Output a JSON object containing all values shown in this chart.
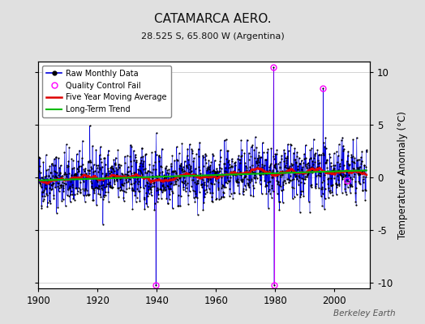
{
  "title": "CATAMARCA AERO.",
  "subtitle": "28.525 S, 65.800 W (Argentina)",
  "ylabel": "Temperature Anomaly (°C)",
  "watermark": "Berkeley Earth",
  "start_year": 1900,
  "end_year": 2011,
  "ylim": [
    -10.5,
    11
  ],
  "yticks": [
    -10,
    -5,
    0,
    5,
    10
  ],
  "xticks": [
    1900,
    1920,
    1940,
    1960,
    1980,
    2000
  ],
  "bg_color": "#e0e0e0",
  "plot_bg_color": "#ffffff",
  "line_color": "#0000dd",
  "moving_avg_color": "#dd0000",
  "trend_color": "#00bb00",
  "qc_fail_color": "#ff00ff",
  "seed": 42
}
